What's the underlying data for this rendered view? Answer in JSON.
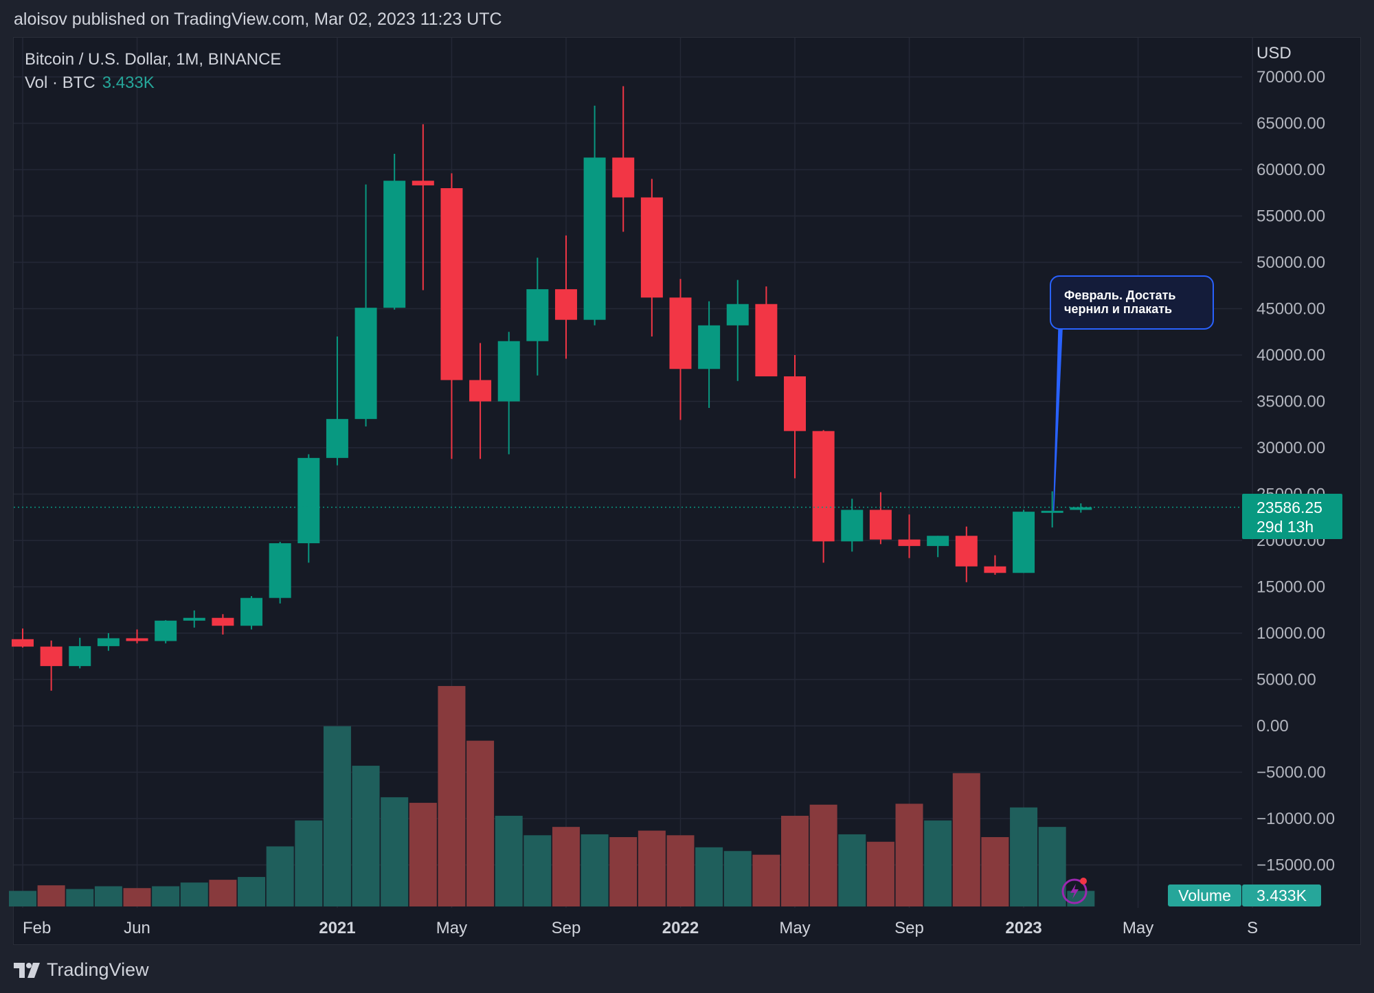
{
  "header": {
    "published": "aloisov published on TradingView.com, Mar 02, 2023 11:23 UTC"
  },
  "legend": {
    "symbol": "Bitcoin / U.S. Dollar, 1M, BINANCE",
    "vol_label": "Vol · BTC",
    "vol_value": "3.433K"
  },
  "axis": {
    "currency": "USD"
  },
  "price_badge": {
    "price": "23586.25",
    "countdown": "29d 13h"
  },
  "volume_badge": {
    "label": "Volume",
    "value": "3.433K"
  },
  "annotation": {
    "line1": "Февраль. Достать",
    "line2": "чернил и плакать"
  },
  "footer": {
    "brand": "TradingView"
  },
  "colors": {
    "up": "#089981",
    "down": "#f23645",
    "vol_up": "#1f5f5c",
    "vol_down": "#883a3d",
    "grid": "#242836",
    "callout_border": "#2962ff"
  },
  "chart_data": {
    "type": "candlestick",
    "ylim": [
      -18000,
      70000
    ],
    "yticks": [
      "70000.00",
      "65000.00",
      "60000.00",
      "55000.00",
      "50000.00",
      "45000.00",
      "40000.00",
      "35000.00",
      "30000.00",
      "25000.00",
      "20000.00",
      "15000.00",
      "10000.00",
      "5000.00",
      "0.00",
      "−5000.00",
      "−10000.00",
      "−15000.00"
    ],
    "ytick_values": [
      70000,
      65000,
      60000,
      55000,
      50000,
      45000,
      40000,
      35000,
      30000,
      25000,
      20000,
      15000,
      10000,
      5000,
      0,
      -5000,
      -10000,
      -15000
    ],
    "xticks": [
      {
        "label": "Feb",
        "index": 0,
        "bold": false
      },
      {
        "label": "Jun",
        "index": 4,
        "bold": false
      },
      {
        "label": "2021",
        "index": 11,
        "bold": true
      },
      {
        "label": "May",
        "index": 15,
        "bold": false
      },
      {
        "label": "Sep",
        "index": 19,
        "bold": false
      },
      {
        "label": "2022",
        "index": 23,
        "bold": true
      },
      {
        "label": "May",
        "index": 27,
        "bold": false
      },
      {
        "label": "Sep",
        "index": 31,
        "bold": false
      },
      {
        "label": "2023",
        "index": 35,
        "bold": true
      },
      {
        "label": "May",
        "index": 39,
        "bold": false
      },
      {
        "label": "S",
        "index": 43,
        "bold": false
      }
    ],
    "last_price": 23586.25,
    "candles": [
      {
        "o": 9350,
        "h": 10500,
        "l": 8450,
        "c": 8550
      },
      {
        "o": 8550,
        "h": 9200,
        "l": 3800,
        "c": 6450
      },
      {
        "o": 6450,
        "h": 9500,
        "l": 6200,
        "c": 8600
      },
      {
        "o": 8600,
        "h": 10000,
        "l": 8100,
        "c": 9450
      },
      {
        "o": 9450,
        "h": 10400,
        "l": 8900,
        "c": 9150
      },
      {
        "o": 9150,
        "h": 11400,
        "l": 8900,
        "c": 11350
      },
      {
        "o": 11350,
        "h": 12450,
        "l": 10600,
        "c": 11650
      },
      {
        "o": 11650,
        "h": 12050,
        "l": 9850,
        "c": 10800
      },
      {
        "o": 10800,
        "h": 14000,
        "l": 10400,
        "c": 13800
      },
      {
        "o": 13800,
        "h": 19850,
        "l": 13200,
        "c": 19700
      },
      {
        "o": 19700,
        "h": 29300,
        "l": 17600,
        "c": 28900
      },
      {
        "o": 28900,
        "h": 42000,
        "l": 28100,
        "c": 33100
      },
      {
        "o": 33100,
        "h": 58400,
        "l": 32300,
        "c": 45100
      },
      {
        "o": 45100,
        "h": 61700,
        "l": 44900,
        "c": 58800
      },
      {
        "o": 58800,
        "h": 64900,
        "l": 47000,
        "c": 58300
      },
      {
        "o": 58000,
        "h": 59600,
        "l": 28800,
        "c": 37300
      },
      {
        "o": 37300,
        "h": 41300,
        "l": 28800,
        "c": 35000
      },
      {
        "o": 35000,
        "h": 42500,
        "l": 29300,
        "c": 41500
      },
      {
        "o": 41500,
        "h": 50500,
        "l": 37800,
        "c": 47100
      },
      {
        "o": 47100,
        "h": 52900,
        "l": 39600,
        "c": 43800
      },
      {
        "o": 43800,
        "h": 66900,
        "l": 43200,
        "c": 61300
      },
      {
        "o": 61300,
        "h": 69000,
        "l": 53300,
        "c": 57000
      },
      {
        "o": 57000,
        "h": 59000,
        "l": 42000,
        "c": 46200
      },
      {
        "o": 46200,
        "h": 48200,
        "l": 33000,
        "c": 38500
      },
      {
        "o": 38500,
        "h": 45800,
        "l": 34300,
        "c": 43200
      },
      {
        "o": 43200,
        "h": 48100,
        "l": 37200,
        "c": 45500
      },
      {
        "o": 45500,
        "h": 47400,
        "l": 37700,
        "c": 37700
      },
      {
        "o": 37700,
        "h": 40000,
        "l": 26700,
        "c": 31800
      },
      {
        "o": 31800,
        "h": 31900,
        "l": 17600,
        "c": 19900
      },
      {
        "o": 19900,
        "h": 24500,
        "l": 18800,
        "c": 23300
      },
      {
        "o": 23300,
        "h": 25200,
        "l": 19600,
        "c": 20100
      },
      {
        "o": 20100,
        "h": 22800,
        "l": 18100,
        "c": 19400
      },
      {
        "o": 19400,
        "h": 20500,
        "l": 18200,
        "c": 20500
      },
      {
        "o": 20500,
        "h": 21500,
        "l": 15500,
        "c": 17200
      },
      {
        "o": 17200,
        "h": 18400,
        "l": 16300,
        "c": 16500
      },
      {
        "o": 16500,
        "h": 23300,
        "l": 16500,
        "c": 23100
      },
      {
        "o": 23100,
        "h": 25300,
        "l": 21400,
        "c": 23200
      },
      {
        "o": 23300,
        "h": 24000,
        "l": 23000,
        "c": 23586
      }
    ],
    "volume_bars": [
      {
        "v": -17800,
        "dir": "up"
      },
      {
        "v": -17200,
        "dir": "down"
      },
      {
        "v": -17600,
        "dir": "up"
      },
      {
        "v": -17300,
        "dir": "up"
      },
      {
        "v": -17500,
        "dir": "down"
      },
      {
        "v": -17300,
        "dir": "up"
      },
      {
        "v": -16900,
        "dir": "up"
      },
      {
        "v": -16600,
        "dir": "down"
      },
      {
        "v": -16300,
        "dir": "up"
      },
      {
        "v": -13000,
        "dir": "up"
      },
      {
        "v": -10200,
        "dir": "up"
      },
      {
        "v": -35,
        "dir": "up"
      },
      {
        "v": -4300,
        "dir": "up"
      },
      {
        "v": -7700,
        "dir": "up"
      },
      {
        "v": -8300,
        "dir": "down"
      },
      {
        "v": 4300,
        "dir": "down"
      },
      {
        "v": -1600,
        "dir": "down"
      },
      {
        "v": -9700,
        "dir": "up"
      },
      {
        "v": -11800,
        "dir": "up"
      },
      {
        "v": -10900,
        "dir": "down"
      },
      {
        "v": -11700,
        "dir": "up"
      },
      {
        "v": -12000,
        "dir": "down"
      },
      {
        "v": -11300,
        "dir": "down"
      },
      {
        "v": -11800,
        "dir": "down"
      },
      {
        "v": -13100,
        "dir": "up"
      },
      {
        "v": -13500,
        "dir": "up"
      },
      {
        "v": -13900,
        "dir": "down"
      },
      {
        "v": -9700,
        "dir": "down"
      },
      {
        "v": -8500,
        "dir": "down"
      },
      {
        "v": -11700,
        "dir": "up"
      },
      {
        "v": -12500,
        "dir": "down"
      },
      {
        "v": -8400,
        "dir": "down"
      },
      {
        "v": -10200,
        "dir": "up"
      },
      {
        "v": -5100,
        "dir": "down"
      },
      {
        "v": -12000,
        "dir": "down"
      },
      {
        "v": -8800,
        "dir": "up"
      },
      {
        "v": -10900,
        "dir": "up"
      },
      {
        "v": -17800,
        "dir": "up"
      }
    ]
  }
}
